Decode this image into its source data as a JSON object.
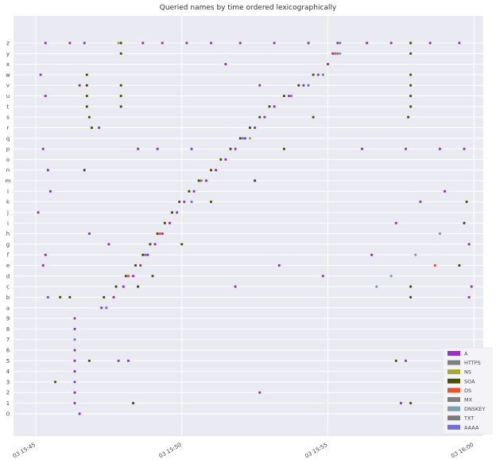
{
  "chart_data": {
    "type": "scatter",
    "title": "Queried names by time ordered lexicographically",
    "xlabel": "",
    "ylabel": "",
    "x_ticks": [
      "03 15:45",
      "03 15:50",
      "03 15:55",
      "03 16:00"
    ],
    "x_range": [
      "15:44:12",
      "16:00:18"
    ],
    "y_categories": [
      "z",
      "y",
      "x",
      "w",
      "v",
      "u",
      "t",
      "s",
      "r",
      "q",
      "p",
      "o",
      "n",
      "m",
      "l",
      "k",
      "j",
      "i",
      "h",
      "g",
      "f",
      "e",
      "d",
      "c",
      "b",
      "a",
      "9",
      "8",
      "7",
      "6",
      "5",
      "4",
      "3",
      "2",
      "1",
      "0"
    ],
    "grid": true,
    "legend_placement": "bottom-right",
    "series": [
      {
        "name": "A",
        "color": "#9b30c8",
        "points": [
          [
            "15:47:15",
            "a"
          ],
          [
            "15:47:40",
            "b"
          ],
          [
            "15:48:00",
            "c"
          ],
          [
            "15:48:20",
            "d"
          ],
          [
            "15:48:35",
            "e"
          ],
          [
            "15:48:50",
            "f"
          ],
          [
            "15:49:05",
            "g"
          ],
          [
            "15:49:20",
            "h"
          ],
          [
            "15:49:35",
            "i"
          ],
          [
            "15:49:50",
            "j"
          ],
          [
            "15:50:05",
            "k"
          ],
          [
            "15:50:25",
            "l"
          ],
          [
            "15:50:50",
            "m"
          ],
          [
            "15:51:10",
            "n"
          ],
          [
            "15:51:30",
            "o"
          ],
          [
            "15:51:50",
            "p"
          ],
          [
            "15:52:10",
            "q"
          ],
          [
            "15:52:30",
            "r"
          ],
          [
            "15:52:50",
            "s"
          ],
          [
            "15:53:10",
            "t"
          ],
          [
            "15:53:40",
            "u"
          ],
          [
            "15:54:10",
            "v"
          ],
          [
            "15:54:40",
            "w"
          ],
          [
            "15:55:00",
            "x"
          ],
          [
            "15:55:10",
            "y"
          ],
          [
            "15:55:20",
            "z"
          ],
          [
            "15:45:20",
            "z"
          ],
          [
            "15:46:10",
            "z"
          ],
          [
            "15:46:40",
            "z"
          ],
          [
            "15:48:40",
            "z"
          ],
          [
            "15:49:20",
            "z"
          ],
          [
            "15:50:10",
            "z"
          ],
          [
            "15:51:00",
            "z"
          ],
          [
            "15:52:00",
            "z"
          ],
          [
            "15:53:10",
            "z"
          ],
          [
            "15:54:20",
            "z"
          ],
          [
            "15:56:20",
            "z"
          ],
          [
            "15:57:10",
            "z"
          ],
          [
            "15:58:30",
            "z"
          ],
          [
            "15:59:30",
            "z"
          ],
          [
            "15:45:10",
            "w"
          ],
          [
            "15:45:20",
            "u"
          ],
          [
            "15:45:15",
            "p"
          ],
          [
            "15:45:25",
            "n"
          ],
          [
            "15:45:30",
            "l"
          ],
          [
            "15:45:05",
            "j"
          ],
          [
            "15:45:20",
            "f"
          ],
          [
            "15:45:15",
            "e"
          ],
          [
            "15:45:25",
            "b"
          ],
          [
            "15:46:30",
            "v"
          ],
          [
            "15:47:10",
            "r"
          ],
          [
            "15:48:30",
            "p"
          ],
          [
            "15:49:10",
            "p"
          ],
          [
            "15:50:20",
            "p"
          ],
          [
            "15:51:30",
            "x"
          ],
          [
            "15:52:40",
            "v"
          ],
          [
            "15:56:10",
            "p"
          ],
          [
            "15:57:40",
            "p"
          ],
          [
            "15:58:50",
            "p"
          ],
          [
            "15:59:40",
            "p"
          ],
          [
            "15:46:50",
            "h"
          ],
          [
            "15:47:30",
            "g"
          ],
          [
            "15:51:50",
            "c"
          ],
          [
            "15:53:20",
            "e"
          ],
          [
            "15:54:50",
            "d"
          ],
          [
            "15:56:30",
            "f"
          ],
          [
            "15:57:20",
            "i"
          ],
          [
            "15:58:10",
            "k"
          ],
          [
            "15:59:00",
            "l"
          ],
          [
            "15:59:50",
            "g"
          ],
          [
            "15:59:55",
            "c"
          ],
          [
            "15:59:50",
            "b"
          ],
          [
            "15:46:20",
            "9"
          ],
          [
            "15:46:20",
            "8"
          ],
          [
            "15:46:20",
            "6"
          ],
          [
            "15:46:20",
            "5"
          ],
          [
            "15:46:20",
            "4"
          ],
          [
            "15:46:20",
            "3"
          ],
          [
            "15:46:20",
            "2"
          ],
          [
            "15:46:20",
            "1"
          ],
          [
            "15:46:30",
            "0"
          ],
          [
            "15:47:50",
            "5"
          ],
          [
            "15:48:10",
            "5"
          ],
          [
            "15:57:40",
            "5"
          ],
          [
            "15:52:40",
            "2"
          ],
          [
            "15:57:30",
            "1"
          ]
        ]
      },
      {
        "name": "HTTPS",
        "color": "#7f7f7f",
        "points": [
          [
            "15:55:25",
            "z"
          ],
          [
            "15:54:50",
            "w"
          ]
        ]
      },
      {
        "name": "NS",
        "color": "#a8a832",
        "points": [
          [
            "15:47:50",
            "z"
          ],
          [
            "15:57:50",
            "z"
          ],
          [
            "15:52:20",
            "q"
          ]
        ]
      },
      {
        "name": "SOA",
        "color": "#4b5000",
        "points": [
          [
            "15:46:45",
            "w"
          ],
          [
            "15:46:45",
            "v"
          ],
          [
            "15:46:45",
            "u"
          ],
          [
            "15:46:45",
            "t"
          ],
          [
            "15:46:50",
            "s"
          ],
          [
            "15:46:55",
            "r"
          ],
          [
            "15:46:40",
            "n"
          ],
          [
            "15:47:55",
            "z"
          ],
          [
            "15:47:55",
            "y"
          ],
          [
            "15:47:55",
            "v"
          ],
          [
            "15:47:55",
            "u"
          ],
          [
            "15:47:55",
            "t"
          ],
          [
            "15:57:50",
            "z"
          ],
          [
            "15:57:50",
            "y"
          ],
          [
            "15:57:50",
            "w"
          ],
          [
            "15:57:50",
            "v"
          ],
          [
            "15:57:50",
            "u"
          ],
          [
            "15:57:50",
            "t"
          ],
          [
            "15:57:45",
            "s"
          ],
          [
            "15:47:20",
            "b"
          ],
          [
            "15:47:45",
            "c"
          ],
          [
            "15:48:05",
            "d"
          ],
          [
            "15:48:25",
            "e"
          ],
          [
            "15:48:40",
            "f"
          ],
          [
            "15:48:55",
            "g"
          ],
          [
            "15:49:10",
            "h"
          ],
          [
            "15:49:25",
            "i"
          ],
          [
            "15:49:40",
            "j"
          ],
          [
            "15:49:55",
            "k"
          ],
          [
            "15:50:15",
            "l"
          ],
          [
            "15:50:35",
            "m"
          ],
          [
            "15:51:00",
            "n"
          ],
          [
            "15:51:20",
            "o"
          ],
          [
            "15:51:40",
            "p"
          ],
          [
            "15:52:00",
            "q"
          ],
          [
            "15:52:20",
            "r"
          ],
          [
            "15:52:40",
            "s"
          ],
          [
            "15:53:00",
            "t"
          ],
          [
            "15:53:30",
            "u"
          ],
          [
            "15:54:00",
            "v"
          ],
          [
            "15:54:30",
            "w"
          ],
          [
            "15:45:50",
            "b"
          ],
          [
            "15:46:10",
            "b"
          ],
          [
            "15:48:30",
            "c"
          ],
          [
            "15:49:00",
            "d"
          ],
          [
            "15:50:00",
            "g"
          ],
          [
            "15:51:00",
            "k"
          ],
          [
            "15:52:30",
            "m"
          ],
          [
            "15:53:30",
            "p"
          ],
          [
            "15:54:30",
            "s"
          ],
          [
            "15:57:50",
            "b"
          ],
          [
            "15:57:50",
            "c"
          ],
          [
            "15:59:30",
            "e"
          ],
          [
            "15:59:40",
            "i"
          ],
          [
            "15:59:45",
            "k"
          ],
          [
            "15:45:40",
            "3"
          ],
          [
            "15:46:50",
            "5"
          ],
          [
            "15:57:20",
            "5"
          ],
          [
            "15:57:50",
            "1"
          ],
          [
            "15:48:20",
            "1"
          ]
        ]
      },
      {
        "name": "DS",
        "color": "#e8542a",
        "points": [
          [
            "15:48:10",
            "d"
          ],
          [
            "15:49:15",
            "h"
          ],
          [
            "15:55:15",
            "y"
          ],
          [
            "15:58:40",
            "e"
          ]
        ]
      },
      {
        "name": "MX",
        "color": "#808080",
        "points": [
          [
            "15:53:45",
            "u"
          ]
        ]
      },
      {
        "name": "DNSKEY",
        "color": "#7a9fb0",
        "points": [
          [
            "15:55:25",
            "y"
          ],
          [
            "15:56:40",
            "c"
          ],
          [
            "15:57:10",
            "d"
          ],
          [
            "15:58:00",
            "f"
          ],
          [
            "15:58:50",
            "h"
          ]
        ]
      },
      {
        "name": "TXT",
        "color": "#7a7a7a",
        "points": [
          [
            "15:50:40",
            "m"
          ]
        ]
      },
      {
        "name": "AAAA",
        "color": "#6f6fd6",
        "points": [
          [
            "15:47:25",
            "a"
          ],
          [
            "15:48:45",
            "f"
          ],
          [
            "15:50:20",
            "k"
          ],
          [
            "15:52:05",
            "q"
          ],
          [
            "15:54:20",
            "v"
          ],
          [
            "15:55:20",
            "y"
          ],
          [
            "15:45:25",
            "b"
          ],
          [
            "15:46:20",
            "7"
          ]
        ]
      }
    ]
  }
}
